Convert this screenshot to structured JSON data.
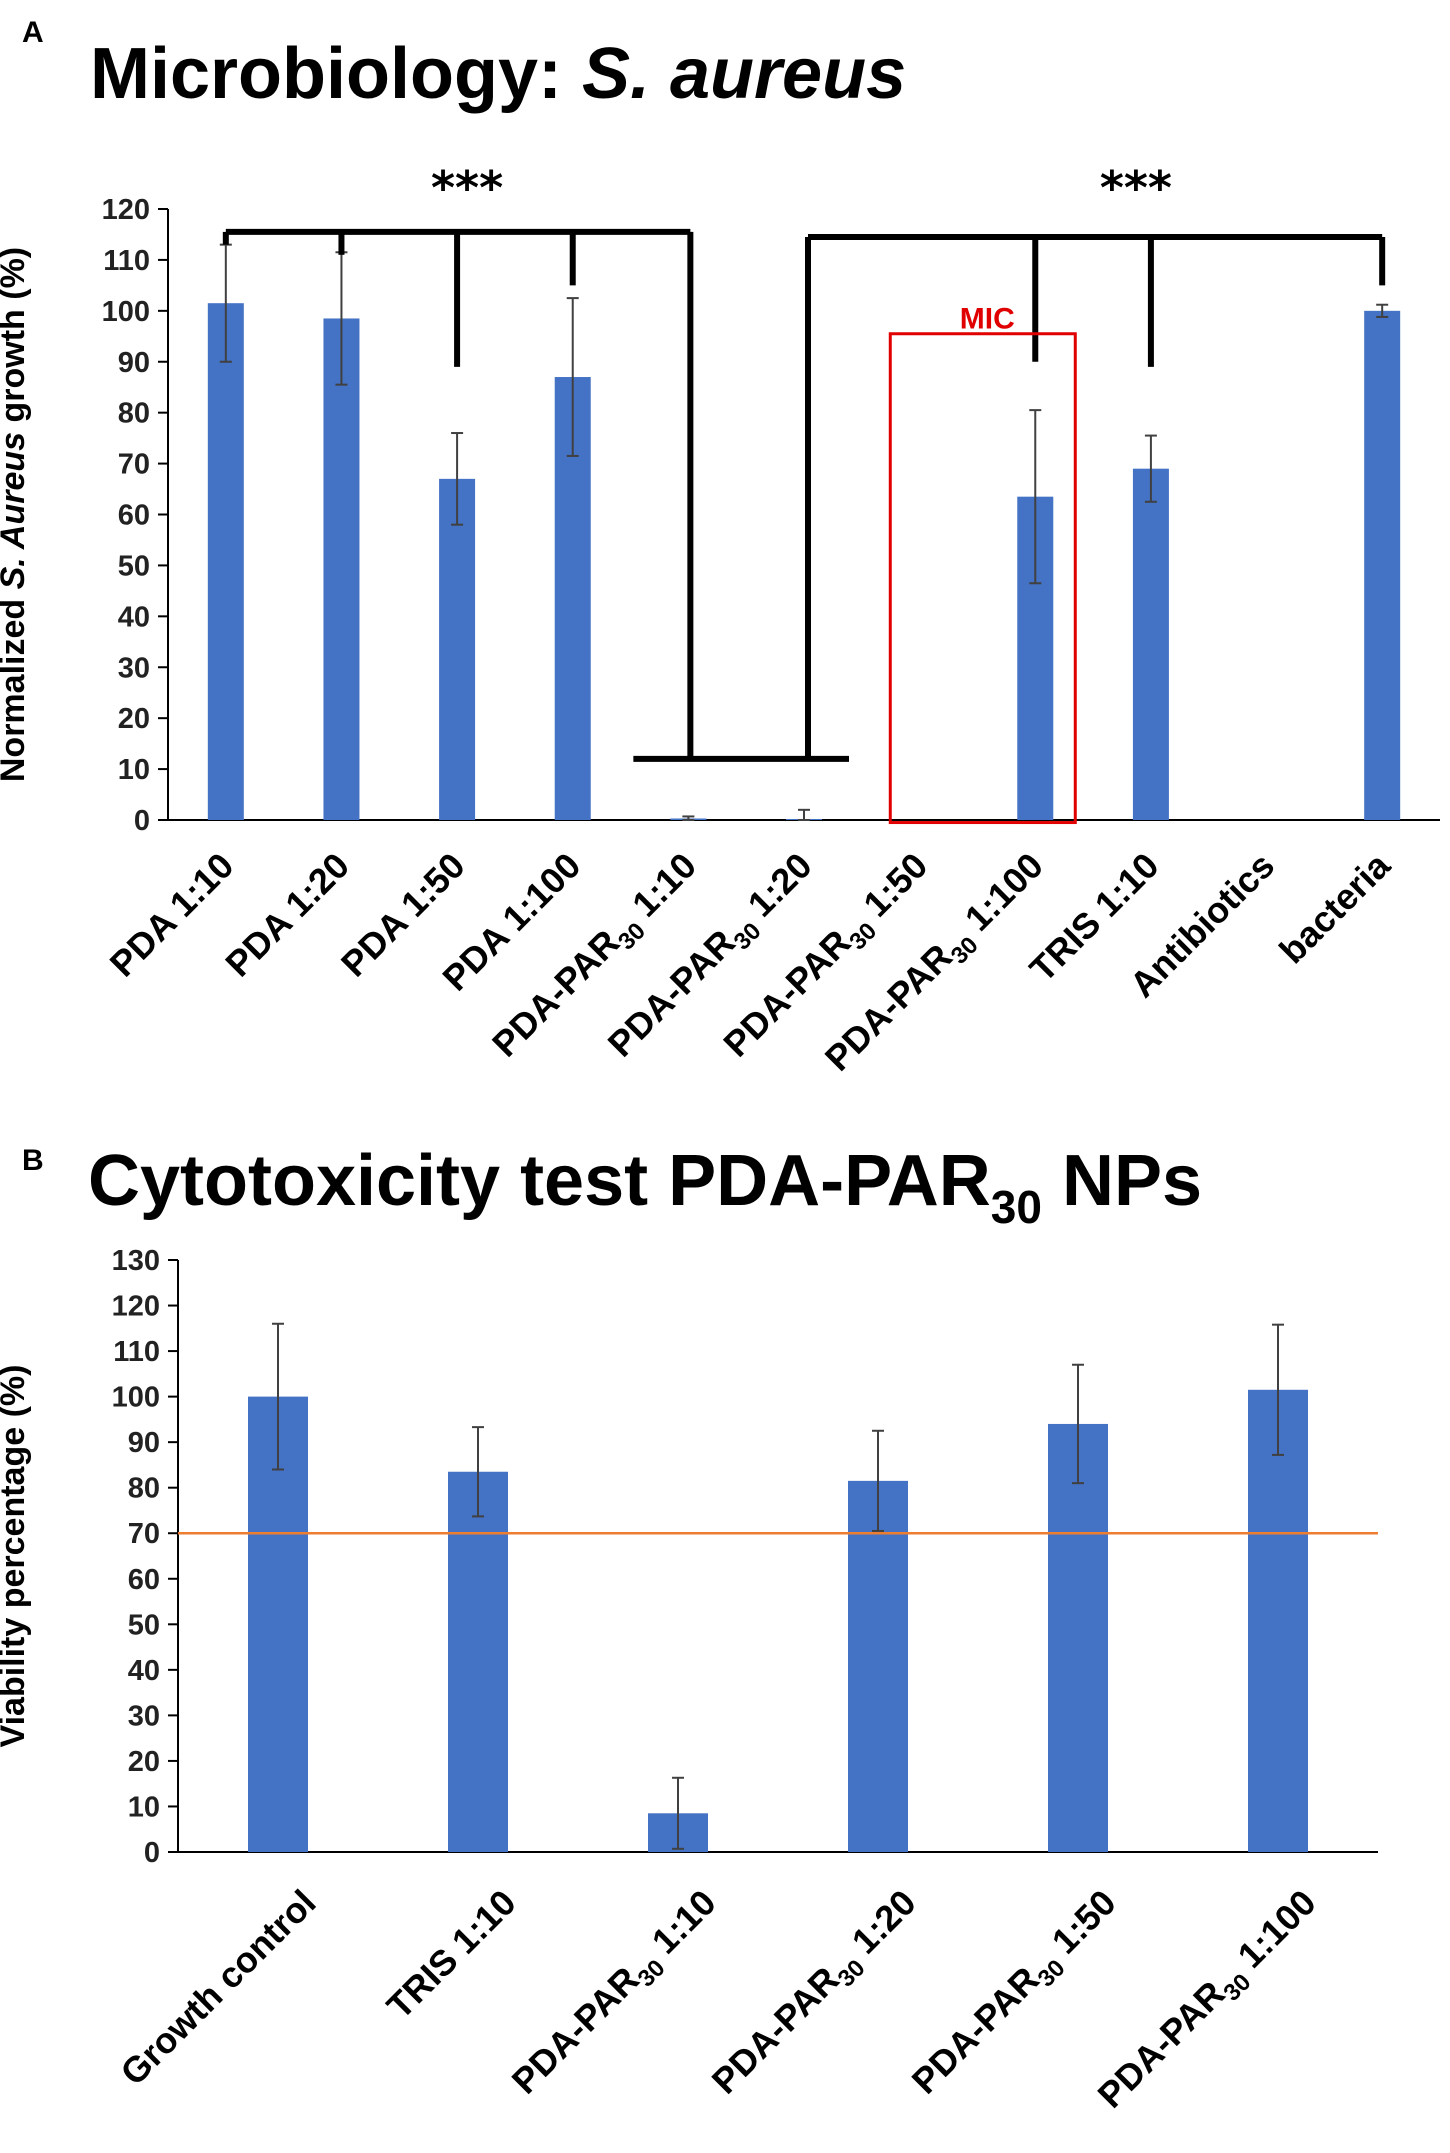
{
  "panel_a": {
    "label": "A",
    "title_main": "Microbiology: ",
    "title_italic": "S. aureus"
  },
  "panel_b": {
    "label": "B",
    "title_main": "Cytotoxicity test PDA-PAR",
    "title_sub": "30",
    "title_end": " NPs"
  },
  "colors": {
    "bar": "#4472C4",
    "error": "#404040",
    "threshold": "#ED7D31",
    "mic_box": "#e00000"
  },
  "chart_data": [
    {
      "type": "bar",
      "title": "Microbiology: S. aureus",
      "ylabel_parts": [
        "Normalized ",
        "S. Aureus",
        " growth (%)"
      ],
      "ylim": [
        0,
        120
      ],
      "yticks": [
        "0",
        "10",
        "20",
        "30",
        "40",
        "50",
        "60",
        "70",
        "80",
        "90",
        "100",
        "110",
        "120"
      ],
      "categories": [
        {
          "main": "PDA 1:10"
        },
        {
          "main": "PDA 1:20"
        },
        {
          "main": "PDA 1:50"
        },
        {
          "main": "PDA 1:100"
        },
        {
          "main": "PDA-PAR",
          "sub": "30",
          "end": " 1:10"
        },
        {
          "main": "PDA-PAR",
          "sub": "30",
          "end": " 1:20"
        },
        {
          "main": "PDA-PAR",
          "sub": "30",
          "end": " 1:50"
        },
        {
          "main": "PDA-PAR",
          "sub": "30",
          "end": " 1:100"
        },
        {
          "main": "TRIS 1:10"
        },
        {
          "main": "Antibiotics"
        },
        {
          "main": "bacteria"
        }
      ],
      "values": [
        101.5,
        98.5,
        67,
        87,
        0.3,
        0.2,
        0,
        63.5,
        69,
        0,
        100
      ],
      "errors": [
        11.5,
        13,
        9,
        15.5,
        0.4,
        1.8,
        0,
        17,
        6.5,
        0,
        1.2
      ],
      "significance": [
        {
          "label": "***",
          "top_y": 115.5,
          "stem_y": 12,
          "groups": [
            0,
            1,
            2,
            3
          ]
        },
        {
          "label": "***",
          "top_y": 114.5,
          "stem_y": 12,
          "groups": [
            7,
            8,
            10
          ]
        }
      ],
      "annotation": {
        "text": "MIC",
        "box_category": 7
      }
    },
    {
      "type": "bar",
      "title": "Cytotoxicity test PDA-PAR30 NPs",
      "ylabel": "Viability percentage (%)",
      "ylim": [
        0,
        130
      ],
      "yticks": [
        "0",
        "10",
        "20",
        "30",
        "40",
        "50",
        "60",
        "70",
        "80",
        "90",
        "100",
        "110",
        "120",
        "130"
      ],
      "categories": [
        {
          "main": "Growth control"
        },
        {
          "main": "TRIS 1:10"
        },
        {
          "main": "PDA-PAR",
          "sub": "30",
          "end": " 1:10"
        },
        {
          "main": "PDA-PAR",
          "sub": "30",
          "end": " 1:20"
        },
        {
          "main": "PDA-PAR",
          "sub": "30",
          "end": " 1:50"
        },
        {
          "main": "PDA-PAR",
          "sub": "30",
          "end": " 1:100"
        }
      ],
      "values": [
        100,
        83.5,
        8.5,
        81.5,
        94,
        101.5
      ],
      "errors": [
        16,
        9.8,
        7.8,
        11,
        13,
        14.3
      ],
      "threshold": 70
    }
  ]
}
